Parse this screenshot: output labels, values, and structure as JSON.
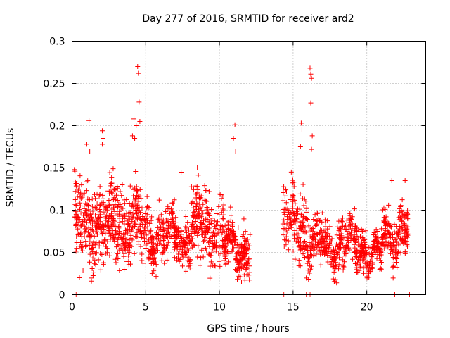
{
  "chart_data": {
    "type": "scatter",
    "title": "Day 277 of 2016, SRMTID for receiver ard2",
    "xlabel": "GPS time / hours",
    "ylabel": "SRMTID / TECUs",
    "xlim": [
      0,
      24
    ],
    "ylim": [
      0,
      0.3
    ],
    "xticks": [
      0,
      5,
      10,
      15,
      20
    ],
    "xtick_labels": [
      "0",
      "5",
      "10",
      "15",
      "20"
    ],
    "yticks": [
      0,
      0.05,
      0.1,
      0.15,
      0.2,
      0.25,
      0.3
    ],
    "ytick_labels": [
      "0",
      "0.05",
      "0.1",
      "0.15",
      "0.2",
      "0.25",
      "0.3"
    ],
    "grid": true,
    "marker": "+",
    "color": "#ff0000",
    "series": [
      {
        "name": "SRMTID",
        "approximate": true,
        "dense_segments": [
          {
            "x_start": 0.15,
            "x_end": 4.7,
            "y_mean": 0.085,
            "y_spread": 0.03,
            "count": 520
          },
          {
            "x_start": 4.7,
            "x_end": 8.0,
            "y_mean": 0.07,
            "y_spread": 0.02,
            "count": 330
          },
          {
            "x_start": 8.0,
            "x_end": 10.3,
            "y_mean": 0.08,
            "y_spread": 0.028,
            "count": 240
          },
          {
            "x_start": 10.3,
            "x_end": 12.1,
            "y_mean": 0.055,
            "y_spread": 0.018,
            "count": 200
          },
          {
            "x_start": 14.3,
            "x_end": 16.0,
            "y_mean": 0.085,
            "y_spread": 0.025,
            "count": 160
          },
          {
            "x_start": 16.0,
            "x_end": 20.0,
            "y_mean": 0.06,
            "y_spread": 0.018,
            "count": 400
          },
          {
            "x_start": 20.0,
            "x_end": 21.0,
            "y_mean": 0.045,
            "y_spread": 0.012,
            "count": 100
          },
          {
            "x_start": 21.0,
            "x_end": 22.8,
            "y_mean": 0.075,
            "y_spread": 0.02,
            "count": 190
          }
        ],
        "notable_points": [
          {
            "x": 4.45,
            "y": 0.27
          },
          {
            "x": 4.5,
            "y": 0.262
          },
          {
            "x": 4.55,
            "y": 0.228
          },
          {
            "x": 4.2,
            "y": 0.208
          },
          {
            "x": 4.35,
            "y": 0.2
          },
          {
            "x": 4.6,
            "y": 0.205
          },
          {
            "x": 4.1,
            "y": 0.188
          },
          {
            "x": 4.25,
            "y": 0.185
          },
          {
            "x": 16.15,
            "y": 0.268
          },
          {
            "x": 16.2,
            "y": 0.261
          },
          {
            "x": 16.25,
            "y": 0.256
          },
          {
            "x": 16.2,
            "y": 0.227
          },
          {
            "x": 15.55,
            "y": 0.203
          },
          {
            "x": 15.6,
            "y": 0.195
          },
          {
            "x": 16.3,
            "y": 0.188
          },
          {
            "x": 15.5,
            "y": 0.175
          },
          {
            "x": 16.25,
            "y": 0.172
          },
          {
            "x": 1.15,
            "y": 0.206
          },
          {
            "x": 2.05,
            "y": 0.194
          },
          {
            "x": 2.1,
            "y": 0.185
          },
          {
            "x": 2.05,
            "y": 0.178
          },
          {
            "x": 1.0,
            "y": 0.178
          },
          {
            "x": 1.2,
            "y": 0.17
          },
          {
            "x": 11.05,
            "y": 0.201
          },
          {
            "x": 10.95,
            "y": 0.185
          },
          {
            "x": 11.1,
            "y": 0.17
          },
          {
            "x": 0.5,
            "y": 0.02
          },
          {
            "x": 17.95,
            "y": 0.014
          },
          {
            "x": 11.5,
            "y": 0.015
          },
          {
            "x": 0.15,
            "y": 0.148
          },
          {
            "x": 8.5,
            "y": 0.15
          },
          {
            "x": 7.4,
            "y": 0.145
          },
          {
            "x": 22.6,
            "y": 0.135
          },
          {
            "x": 21.7,
            "y": 0.135
          }
        ],
        "zero_points": [
          {
            "x": 0.2,
            "y": 0
          },
          {
            "x": 0.3,
            "y": 0
          },
          {
            "x": 14.35,
            "y": 0
          },
          {
            "x": 14.45,
            "y": 0
          },
          {
            "x": 16.1,
            "y": 0
          },
          {
            "x": 16.2,
            "y": 0
          },
          {
            "x": 15.9,
            "y": 0
          },
          {
            "x": 21.9,
            "y": 0
          },
          {
            "x": 22.9,
            "y": 0
          }
        ]
      }
    ]
  }
}
